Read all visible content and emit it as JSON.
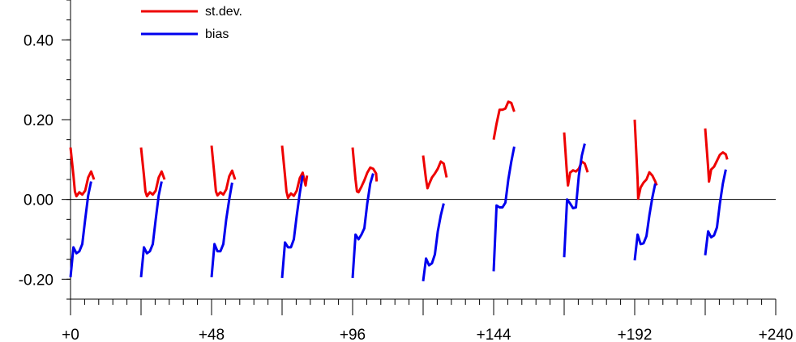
{
  "chart_data": {
    "type": "line",
    "title": "",
    "xlabel": "",
    "ylabel": "",
    "xlim": [
      0,
      240
    ],
    "ylim": [
      -0.25,
      0.5
    ],
    "x_ticks": [
      {
        "value": 0,
        "label": "+0"
      },
      {
        "value": 48,
        "label": "+48"
      },
      {
        "value": 96,
        "label": "+96"
      },
      {
        "value": 144,
        "label": "+144"
      },
      {
        "value": 192,
        "label": "+192"
      },
      {
        "value": 240,
        "label": "+240"
      }
    ],
    "y_ticks": [
      {
        "value": -0.2,
        "label": "-0.20"
      },
      {
        "value": 0.0,
        "label": "0.00"
      },
      {
        "value": 0.2,
        "label": "0.20"
      },
      {
        "value": 0.4,
        "label": "0.40"
      }
    ],
    "x_minor_step": 4.8,
    "y_minor_step": 0.05,
    "zero_line": true,
    "grid": false,
    "legend_position": "top-left",
    "series": [
      {
        "name": "st.dev.",
        "color": "#ee0000",
        "segments": [
          [
            [
              0,
              0.13
            ],
            [
              1,
              0.06
            ],
            [
              1.5,
              0.02
            ],
            [
              2,
              0.008
            ],
            [
              3,
              0.018
            ],
            [
              4,
              0.012
            ],
            [
              5,
              0.022
            ],
            [
              6,
              0.055
            ],
            [
              7,
              0.07
            ],
            [
              8,
              0.05
            ]
          ],
          [
            [
              24,
              0.13
            ],
            [
              25,
              0.06
            ],
            [
              25.5,
              0.02
            ],
            [
              26,
              0.008
            ],
            [
              27,
              0.018
            ],
            [
              28,
              0.012
            ],
            [
              29,
              0.022
            ],
            [
              30,
              0.055
            ],
            [
              31,
              0.07
            ],
            [
              32,
              0.05
            ]
          ],
          [
            [
              48,
              0.135
            ],
            [
              49,
              0.06
            ],
            [
              49.5,
              0.02
            ],
            [
              50,
              0.01
            ],
            [
              51,
              0.018
            ],
            [
              52,
              0.012
            ],
            [
              53,
              0.025
            ],
            [
              54,
              0.058
            ],
            [
              55,
              0.072
            ],
            [
              56,
              0.05
            ]
          ],
          [
            [
              72,
              0.135
            ],
            [
              73,
              0.06
            ],
            [
              73.5,
              0.02
            ],
            [
              74,
              0.004
            ],
            [
              75,
              0.015
            ],
            [
              76,
              0.009
            ],
            [
              77,
              0.022
            ],
            [
              78,
              0.053
            ],
            [
              79,
              0.067
            ],
            [
              80,
              0.035
            ],
            [
              80.5,
              0.06
            ]
          ],
          [
            [
              96,
              0.13
            ],
            [
              97,
              0.05
            ],
            [
              97.5,
              0.02
            ],
            [
              98,
              0.018
            ],
            [
              99,
              0.032
            ],
            [
              100,
              0.048
            ],
            [
              101,
              0.067
            ],
            [
              102,
              0.08
            ],
            [
              103,
              0.077
            ],
            [
              104,
              0.065
            ],
            [
              104.2,
              0.045
            ]
          ],
          [
            [
              120,
              0.11
            ],
            [
              121,
              0.05
            ],
            [
              121.5,
              0.028
            ],
            [
              122,
              0.038
            ],
            [
              123,
              0.055
            ],
            [
              124,
              0.065
            ],
            [
              125,
              0.077
            ],
            [
              126,
              0.095
            ],
            [
              127,
              0.09
            ],
            [
              128,
              0.055
            ]
          ],
          [
            [
              144,
              0.15
            ],
            [
              145,
              0.19
            ],
            [
              146,
              0.225
            ],
            [
              147,
              0.225
            ],
            [
              148,
              0.228
            ],
            [
              149,
              0.245
            ],
            [
              150,
              0.242
            ],
            [
              151,
              0.22
            ]
          ],
          [
            [
              168,
              0.168
            ],
            [
              169,
              0.06
            ],
            [
              169.3,
              0.035
            ],
            [
              170,
              0.067
            ],
            [
              171,
              0.073
            ],
            [
              172,
              0.07
            ],
            [
              173,
              0.077
            ],
            [
              174,
              0.095
            ],
            [
              175,
              0.09
            ],
            [
              176,
              0.068
            ]
          ],
          [
            [
              192,
              0.2
            ],
            [
              193,
              0.05
            ],
            [
              193.2,
              0.002
            ],
            [
              194,
              0.03
            ],
            [
              195,
              0.042
            ],
            [
              196,
              0.05
            ],
            [
              197,
              0.068
            ],
            [
              198,
              0.06
            ],
            [
              199,
              0.045
            ],
            [
              199.5,
              0.035
            ]
          ],
          [
            [
              216,
              0.178
            ],
            [
              217,
              0.08
            ],
            [
              217.3,
              0.045
            ],
            [
              218,
              0.075
            ],
            [
              219,
              0.082
            ],
            [
              220,
              0.097
            ],
            [
              221,
              0.112
            ],
            [
              222,
              0.118
            ],
            [
              223,
              0.113
            ],
            [
              223.5,
              0.1
            ]
          ]
        ]
      },
      {
        "name": "bias",
        "color": "#0000ee",
        "segments": [
          [
            [
              0,
              -0.195
            ],
            [
              1,
              -0.12
            ],
            [
              2,
              -0.135
            ],
            [
              3,
              -0.13
            ],
            [
              4,
              -0.112
            ],
            [
              5,
              -0.05
            ],
            [
              6,
              0.01
            ],
            [
              7,
              0.045
            ]
          ],
          [
            [
              24,
              -0.195
            ],
            [
              25,
              -0.12
            ],
            [
              26,
              -0.135
            ],
            [
              27,
              -0.13
            ],
            [
              28,
              -0.112
            ],
            [
              29,
              -0.05
            ],
            [
              30,
              0.01
            ],
            [
              31,
              0.045
            ]
          ],
          [
            [
              48,
              -0.195
            ],
            [
              49,
              -0.112
            ],
            [
              50,
              -0.13
            ],
            [
              51,
              -0.13
            ],
            [
              52,
              -0.112
            ],
            [
              53,
              -0.05
            ],
            [
              54,
              0.0
            ],
            [
              55,
              0.042
            ]
          ],
          [
            [
              72,
              -0.197
            ],
            [
              73,
              -0.108
            ],
            [
              74,
              -0.12
            ],
            [
              75,
              -0.12
            ],
            [
              76,
              -0.1
            ],
            [
              77,
              -0.04
            ],
            [
              78,
              0.015
            ],
            [
              79,
              0.06
            ]
          ],
          [
            [
              96,
              -0.197
            ],
            [
              97,
              -0.088
            ],
            [
              98,
              -0.1
            ],
            [
              99,
              -0.088
            ],
            [
              100,
              -0.072
            ],
            [
              101,
              -0.01
            ],
            [
              102,
              0.04
            ],
            [
              103,
              0.065
            ]
          ],
          [
            [
              120,
              -0.205
            ],
            [
              121,
              -0.148
            ],
            [
              122,
              -0.165
            ],
            [
              123,
              -0.16
            ],
            [
              124,
              -0.138
            ],
            [
              125,
              -0.08
            ],
            [
              126,
              -0.04
            ],
            [
              127,
              -0.01
            ]
          ],
          [
            [
              144,
              -0.18
            ],
            [
              145,
              -0.015
            ],
            [
              146,
              -0.02
            ],
            [
              147,
              -0.02
            ],
            [
              148,
              -0.008
            ],
            [
              149,
              0.05
            ],
            [
              150,
              0.095
            ],
            [
              151,
              0.132
            ]
          ],
          [
            [
              168,
              -0.145
            ],
            [
              169,
              0.0
            ],
            [
              170,
              -0.01
            ],
            [
              171,
              -0.022
            ],
            [
              172,
              -0.02
            ],
            [
              173,
              0.06
            ],
            [
              174,
              0.11
            ],
            [
              175,
              0.14
            ]
          ],
          [
            [
              192,
              -0.153
            ],
            [
              193,
              -0.088
            ],
            [
              194,
              -0.112
            ],
            [
              195,
              -0.11
            ],
            [
              196,
              -0.092
            ],
            [
              197,
              -0.04
            ],
            [
              198,
              0.005
            ],
            [
              199,
              0.04
            ]
          ],
          [
            [
              216,
              -0.14
            ],
            [
              217,
              -0.08
            ],
            [
              218,
              -0.095
            ],
            [
              219,
              -0.09
            ],
            [
              220,
              -0.07
            ],
            [
              221,
              -0.01
            ],
            [
              222,
              0.04
            ],
            [
              223,
              0.075
            ]
          ]
        ]
      }
    ]
  }
}
